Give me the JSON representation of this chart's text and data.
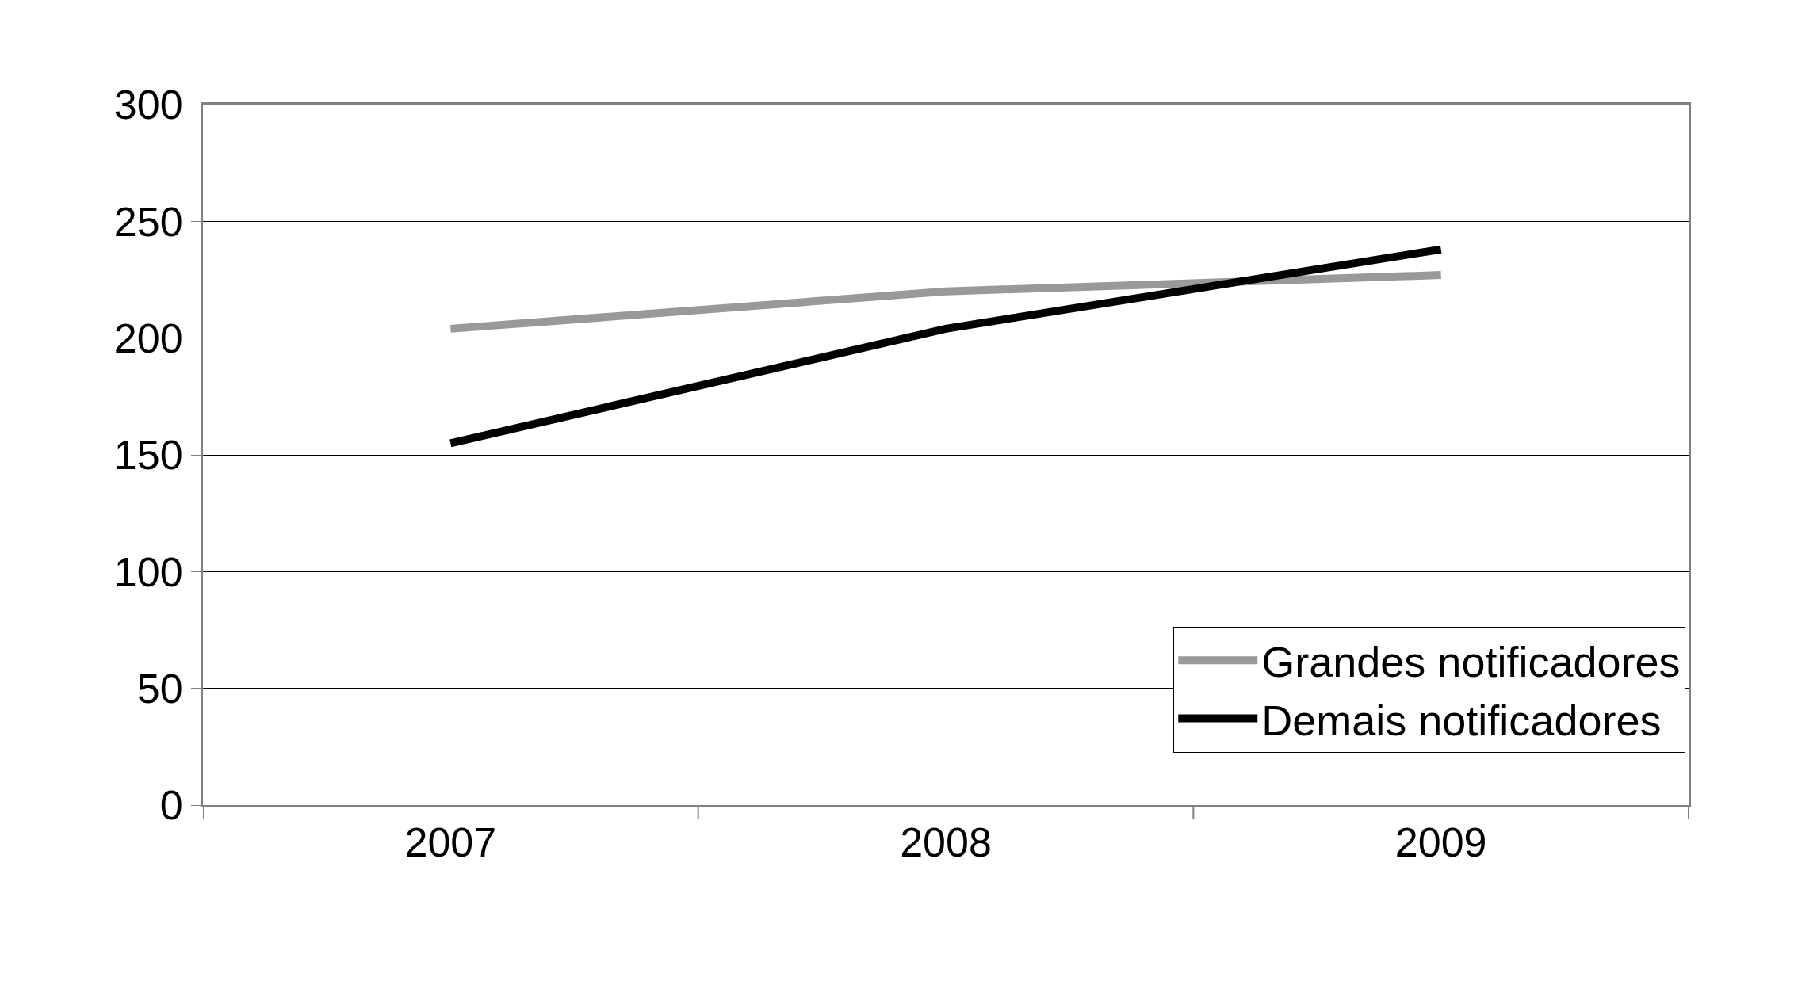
{
  "chart_data": {
    "type": "line",
    "categories": [
      "2007",
      "2008",
      "2009"
    ],
    "series": [
      {
        "name": "Grandes notificadores",
        "color": "#999999",
        "values": [
          204,
          220,
          227
        ]
      },
      {
        "name": "Demais notificadores",
        "color": "#000000",
        "values": [
          155,
          204,
          238
        ]
      }
    ],
    "ylim": [
      0,
      300
    ],
    "yticks": [
      0,
      50,
      100,
      150,
      200,
      250,
      300
    ],
    "grid": "y",
    "legend": "bottom right",
    "marker": "none",
    "line_style": "solid"
  }
}
